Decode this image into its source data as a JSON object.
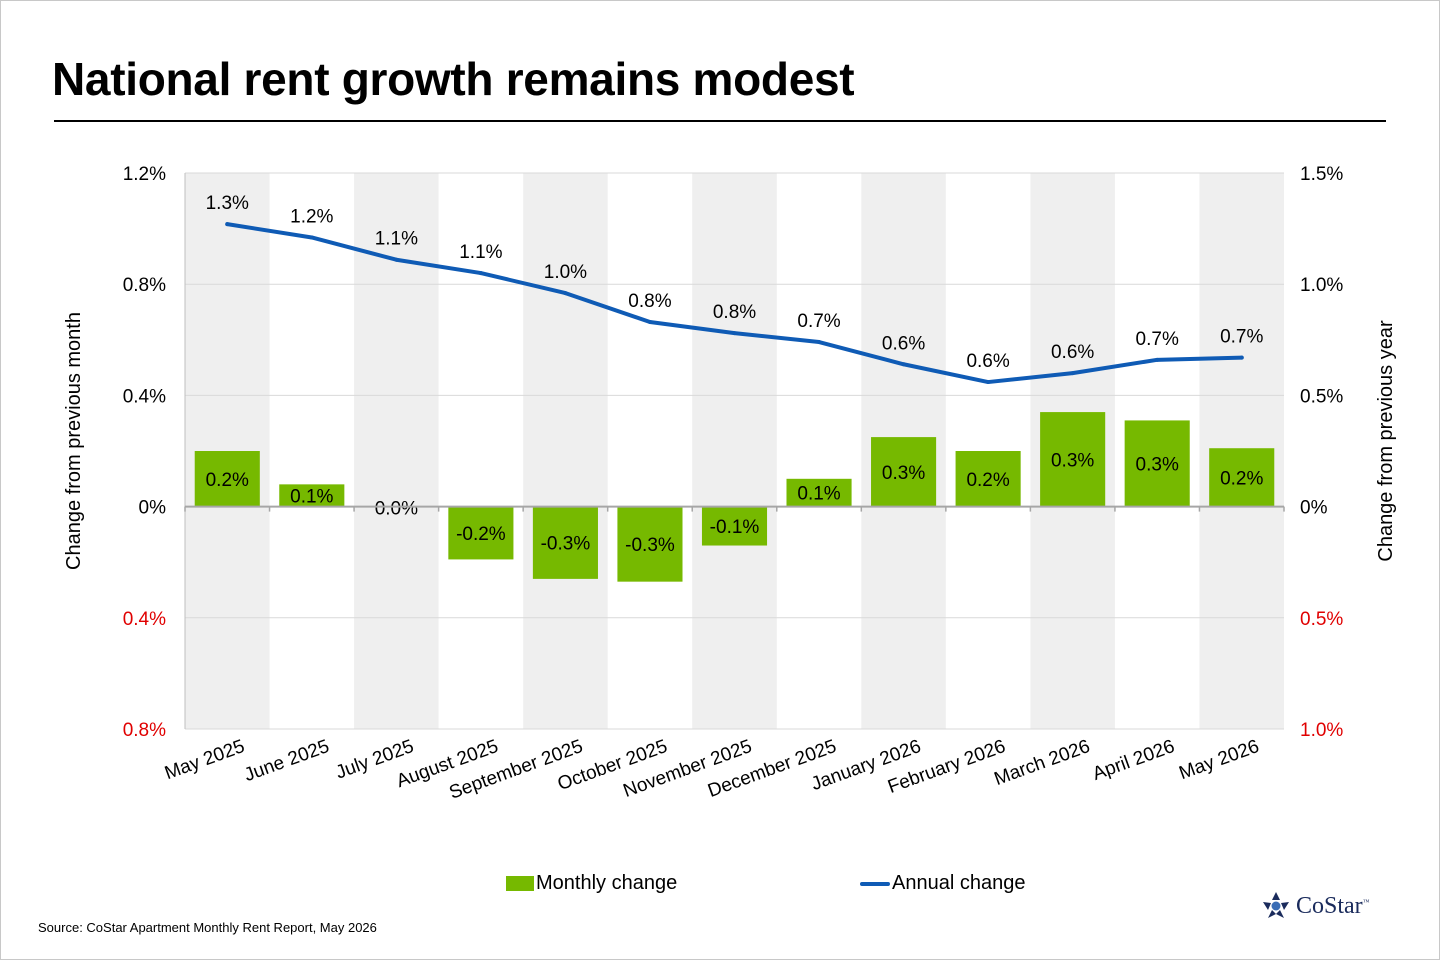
{
  "title": "National rent growth remains modest",
  "source": "Source: CoStar Apartment Monthly Rent Report, May 2026",
  "brand": {
    "name": "CoStar",
    "tm": "™",
    "logo_icon": "costar-star-logo-icon"
  },
  "colors": {
    "bar": "#76b900",
    "line": "#0f5bb5",
    "band": "#efefef",
    "grid": "#d9d9d9",
    "negative_tick": "#e00000"
  },
  "legend": {
    "bar_label": "Monthly change",
    "line_label": "Annual change"
  },
  "chart_data": {
    "type": "bar",
    "title": "National rent growth remains modest",
    "categories": [
      "May 2025",
      "June 2025",
      "July 2025",
      "August 2025",
      "September 2025",
      "October 2025",
      "November 2025",
      "December 2025",
      "January 2026",
      "February 2026",
      "March 2026",
      "April 2026",
      "May 2026"
    ],
    "series": [
      {
        "name": "Monthly change",
        "type": "bar",
        "axis": "left",
        "values": [
          0.2,
          0.08,
          0.0,
          -0.19,
          -0.26,
          -0.27,
          -0.14,
          0.1,
          0.25,
          0.2,
          0.34,
          0.31,
          0.21
        ],
        "labels": [
          "0.2%",
          "0.1%",
          "0.0%",
          "-0.2%",
          "-0.3%",
          "-0.3%",
          "-0.1%",
          "0.1%",
          "0.3%",
          "0.2%",
          "0.3%",
          "0.3%",
          "0.2%"
        ]
      },
      {
        "name": "Annual change",
        "type": "line",
        "axis": "right",
        "values": [
          1.27,
          1.21,
          1.11,
          1.05,
          0.96,
          0.83,
          0.78,
          0.74,
          0.64,
          0.56,
          0.6,
          0.66,
          0.67
        ],
        "labels": [
          "1.3%",
          "1.2%",
          "1.1%",
          "1.1%",
          "1.0%",
          "0.8%",
          "0.8%",
          "0.7%",
          "0.6%",
          "0.6%",
          "0.6%",
          "0.7%",
          "0.7%"
        ]
      }
    ],
    "left_axis": {
      "label": "Change from previous month",
      "ylim": [
        -0.8,
        1.2
      ],
      "ticks": [
        1.2,
        0.8,
        0.4,
        0,
        -0.4,
        -0.8
      ],
      "tick_labels": [
        "1.2%",
        "0.8%",
        "0.4%",
        "0%",
        "0.4%",
        "0.8%"
      ]
    },
    "right_axis": {
      "label": "Change from previous year",
      "ylim": [
        -1.0,
        1.5
      ],
      "ticks": [
        1.5,
        1.0,
        0.5,
        0,
        -0.5,
        -1.0
      ],
      "tick_labels": [
        "1.5%",
        "1.0%",
        "0.5%",
        "0%",
        "0.5%",
        "1.0%"
      ]
    },
    "grid": true,
    "legend_position": "bottom"
  }
}
